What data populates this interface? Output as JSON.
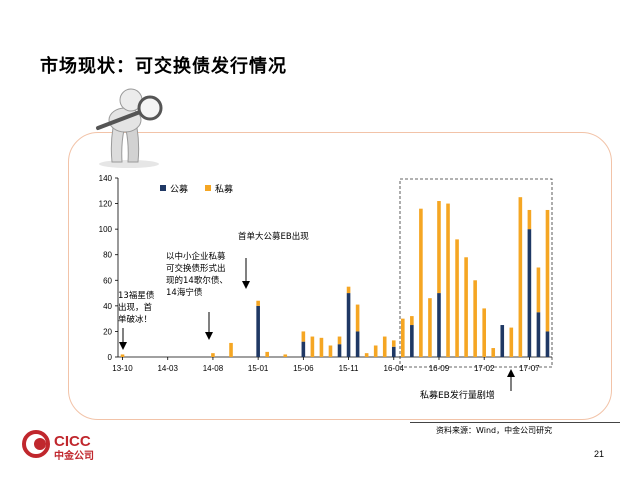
{
  "page": {
    "title": "市场现状：可交换债发行情况",
    "source": "资料来源：Wind，中金公司研究",
    "page_number": "21",
    "logo_en": "CICC",
    "logo_cn": "中金公司"
  },
  "colors": {
    "public": "#1f3864",
    "private": "#f5a623",
    "frame": "#f2c3a8",
    "logo": "#c0272d"
  },
  "chart_data": {
    "type": "bar",
    "stacked": true,
    "legend_position": "top-left",
    "ylim": [
      0,
      140
    ],
    "yticks": [
      0,
      20,
      40,
      60,
      80,
      100,
      120,
      140
    ],
    "xtick_labels": [
      "13-10",
      "14-03",
      "14-08",
      "15-01",
      "15-06",
      "15-11",
      "16-04",
      "16-09",
      "17-02",
      "17-07"
    ],
    "categories": [
      "13-10",
      "13-11",
      "13-12",
      "14-01",
      "14-02",
      "14-03",
      "14-04",
      "14-05",
      "14-06",
      "14-07",
      "14-08",
      "14-09",
      "14-10",
      "14-11",
      "14-12",
      "15-01",
      "15-02",
      "15-03",
      "15-04",
      "15-05",
      "15-06",
      "15-07",
      "15-08",
      "15-09",
      "15-10",
      "15-11",
      "15-12",
      "16-01",
      "16-02",
      "16-03",
      "16-04",
      "16-05",
      "16-06",
      "16-07",
      "16-08",
      "16-09",
      "16-10",
      "16-11",
      "16-12",
      "17-01",
      "17-02",
      "17-03",
      "17-04",
      "17-05",
      "17-06",
      "17-07",
      "17-08",
      "17-09"
    ],
    "series": [
      {
        "name": "公募",
        "values": [
          0,
          0,
          0,
          0,
          0,
          0,
          0,
          0,
          0,
          0,
          0,
          0,
          0,
          0,
          0,
          40,
          0,
          0,
          0,
          0,
          12,
          0,
          0,
          0,
          10,
          50,
          20,
          0,
          0,
          0,
          8,
          0,
          25,
          0,
          0,
          50,
          0,
          0,
          0,
          0,
          0,
          0,
          25,
          0,
          0,
          100,
          35,
          20
        ]
      },
      {
        "name": "私募",
        "values": [
          2,
          0,
          0,
          0,
          0,
          0,
          0,
          0,
          0,
          0,
          3,
          0,
          11,
          0,
          0,
          4,
          4,
          0,
          2,
          0,
          8,
          16,
          15,
          9,
          6,
          5,
          21,
          3,
          9,
          16,
          5,
          30,
          7,
          116,
          46,
          72,
          120,
          92,
          78,
          60,
          38,
          7,
          0,
          23,
          125,
          15,
          35,
          95
        ]
      }
    ],
    "annotations": [
      "首单大公募EB出现",
      "以中小企业私募可交换债形式出现的14歌尔债、14海宁债",
      "13福星债出现，首单破冰！",
      "私募EB发行量剧增"
    ],
    "annotation_lines": {
      "a1": [
        "首单大公募EB出现"
      ],
      "a2": [
        "以中小企业私募",
        "可交换债形式出",
        "现的14歌尔债、",
        "14海宁债"
      ],
      "a3": [
        "13福星债",
        "出现，首",
        "单破冰！"
      ],
      "a4": [
        "私募EB发行量剧增"
      ]
    }
  }
}
